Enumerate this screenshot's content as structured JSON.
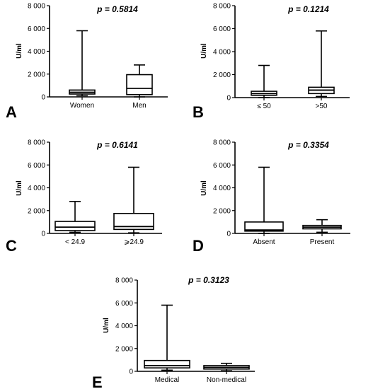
{
  "chart_data": [
    {
      "type": "box",
      "panel": "A",
      "title": "p = 0.5814",
      "ylabel": "U/ml",
      "ylim": [
        0,
        8000
      ],
      "yticks": [
        0,
        2000,
        4000,
        6000,
        8000
      ],
      "ytick_labels": [
        "0",
        "2 000",
        "4 000",
        "6 000",
        "8 000"
      ],
      "categories": [
        "Women",
        "Men"
      ],
      "boxes": [
        {
          "min": 100,
          "q1": 250,
          "median": 400,
          "q3": 600,
          "max": 5800
        },
        {
          "min": 0,
          "q1": 200,
          "median": 750,
          "q3": 1950,
          "max": 2800
        }
      ]
    },
    {
      "type": "box",
      "panel": "B",
      "title": "p = 0.1214",
      "ylabel": "U/ml",
      "ylim": [
        0,
        8000
      ],
      "yticks": [
        0,
        2000,
        4000,
        6000,
        8000
      ],
      "ytick_labels": [
        "0",
        "2 000",
        "4 000",
        "6 000",
        "8 000"
      ],
      "categories": [
        "≤ 50",
        ">50"
      ],
      "boxes": [
        {
          "min": 0,
          "q1": 200,
          "median": 350,
          "q3": 550,
          "max": 2800
        },
        {
          "min": 100,
          "q1": 350,
          "median": 650,
          "q3": 900,
          "max": 5800
        }
      ]
    },
    {
      "type": "box",
      "panel": "C",
      "title": "p = 0.6141",
      "ylabel": "U/ml",
      "ylim": [
        0,
        8000
      ],
      "yticks": [
        0,
        2000,
        4000,
        6000,
        8000
      ],
      "ytick_labels": [
        "0",
        "2 000",
        "4 000",
        "6 000",
        "8 000"
      ],
      "categories": [
        "< 24.9",
        "⩾24.9"
      ],
      "boxes": [
        {
          "min": 100,
          "q1": 250,
          "median": 550,
          "q3": 1050,
          "max": 2800
        },
        {
          "min": 50,
          "q1": 350,
          "median": 600,
          "q3": 1750,
          "max": 5800
        }
      ]
    },
    {
      "type": "box",
      "panel": "D",
      "title": "p = 0.3354",
      "ylabel": "U/ml",
      "ylim": [
        0,
        8000
      ],
      "yticks": [
        0,
        2000,
        4000,
        6000,
        8000
      ],
      "ytick_labels": [
        "0",
        "2 000",
        "4 000",
        "6 000",
        "8 000"
      ],
      "categories": [
        "Absent",
        "Present"
      ],
      "boxes": [
        {
          "min": 0,
          "q1": 200,
          "median": 300,
          "q3": 1000,
          "max": 5800
        },
        {
          "min": 100,
          "q1": 400,
          "median": 550,
          "q3": 700,
          "max": 1200
        }
      ]
    },
    {
      "type": "box",
      "panel": "E",
      "title": "p = 0.3123",
      "ylabel": "U/ml",
      "ylim": [
        0,
        8000
      ],
      "yticks": [
        0,
        2000,
        4000,
        6000,
        8000
      ],
      "ytick_labels": [
        "0",
        "2 000",
        "4 000",
        "6 000",
        "8 000"
      ],
      "categories": [
        "Medical",
        "Non-medical"
      ],
      "boxes": [
        {
          "min": 100,
          "q1": 300,
          "median": 500,
          "q3": 950,
          "max": 5800
        },
        {
          "min": 50,
          "q1": 200,
          "median": 350,
          "q3": 500,
          "max": 700
        }
      ]
    }
  ]
}
